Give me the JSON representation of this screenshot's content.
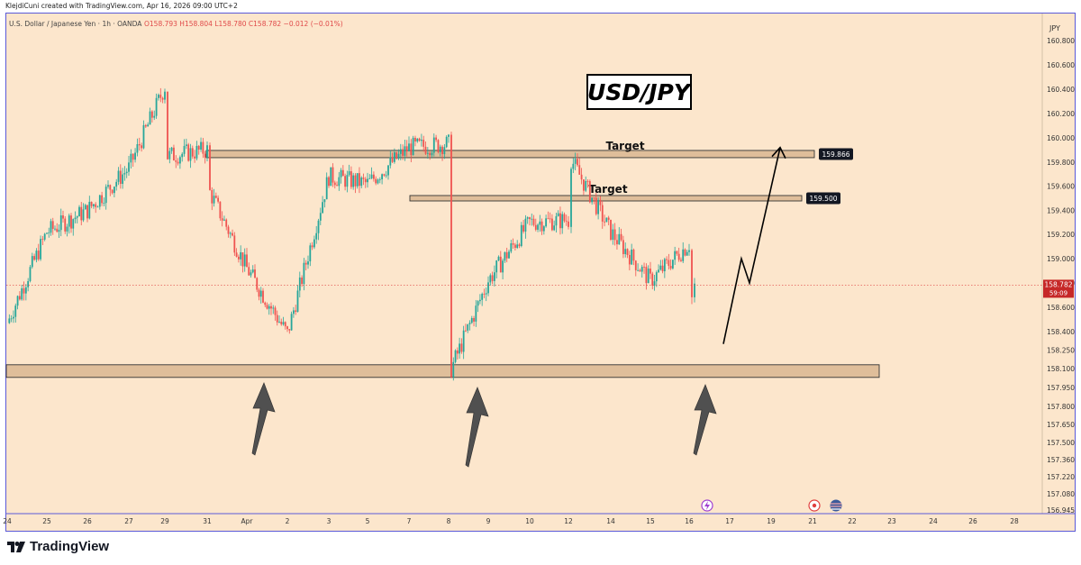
{
  "header": {
    "credit": "KlejdiCuni created with TradingView.com, Apr 16, 2026 09:00 UTC+2"
  },
  "legend": {
    "symbol": "U.S. Dollar / Japanese Yen · 1h · OANDA",
    "ohlc": "O158.793 H158.804 L158.780 C158.782 −0.012 (−0.01%)"
  },
  "title_box": "USD/JPY",
  "footer": {
    "brand": "TradingView"
  },
  "colors": {
    "up": "#26a69a",
    "down": "#ef5350",
    "zone": "#d6b08a",
    "background": "#fce6cc",
    "arrow_grey": "#505050"
  },
  "chart_data": {
    "type": "candlestick",
    "currency_label": "JPY",
    "y_ticks": [
      "160.800",
      "160.600",
      "160.400",
      "160.200",
      "160.000",
      "159.800",
      "159.600",
      "159.400",
      "159.200",
      "159.000",
      "158.800",
      "158.600",
      "158.400",
      "158.250",
      "158.100",
      "157.950",
      "157.800",
      "157.650",
      "157.500",
      "157.360",
      "157.220",
      "157.080",
      "156.945"
    ],
    "x_ticks": [
      "24",
      "25",
      "26",
      "27",
      "29",
      "31",
      "Apr",
      "2",
      "3",
      "5",
      "7",
      "8",
      "9",
      "10",
      "12",
      "14",
      "15",
      "16",
      "17",
      "19",
      "21",
      "22",
      "23",
      "24",
      "26",
      "28"
    ],
    "last_price": "158.782",
    "countdown": "59:09",
    "price_path": [
      {
        "x": "24",
        "y": 158.47
      },
      {
        "x": "25",
        "y": 159.22
      },
      {
        "x": "26",
        "y": 159.4
      },
      {
        "x": "27",
        "y": 159.75
      },
      {
        "x": "29",
        "y": 160.42
      },
      {
        "x": "29",
        "y": 159.85
      },
      {
        "x": "31",
        "y": 159.9
      },
      {
        "x": "31",
        "y": 159.55
      },
      {
        "x": "Apr",
        "y": 158.92
      },
      {
        "x": "2",
        "y": 158.38
      },
      {
        "x": "3",
        "y": 159.68
      },
      {
        "x": "5",
        "y": 159.62
      },
      {
        "x": "7",
        "y": 159.92
      },
      {
        "x": "8",
        "y": 159.95
      },
      {
        "x": "8",
        "y": 158.1
      },
      {
        "x": "9",
        "y": 158.82
      },
      {
        "x": "10",
        "y": 159.3
      },
      {
        "x": "12",
        "y": 159.32
      },
      {
        "x": "12",
        "y": 159.82
      },
      {
        "x": "14",
        "y": 159.22
      },
      {
        "x": "15",
        "y": 158.82
      },
      {
        "x": "16",
        "y": 159.12
      },
      {
        "x": "16",
        "y": 158.68
      },
      {
        "x": "16",
        "y": 158.78
      }
    ],
    "zones": [
      {
        "label": "Target",
        "price": 159.866
      },
      {
        "label": "Target",
        "price": 159.5
      },
      {
        "label": "",
        "price": 158.08
      }
    ],
    "projection": [
      158.3,
      159.0,
      158.8,
      159.92
    ],
    "arrows": [
      "24 support up-arrow",
      "8 support up-arrow",
      "16 support up-arrow"
    ]
  }
}
